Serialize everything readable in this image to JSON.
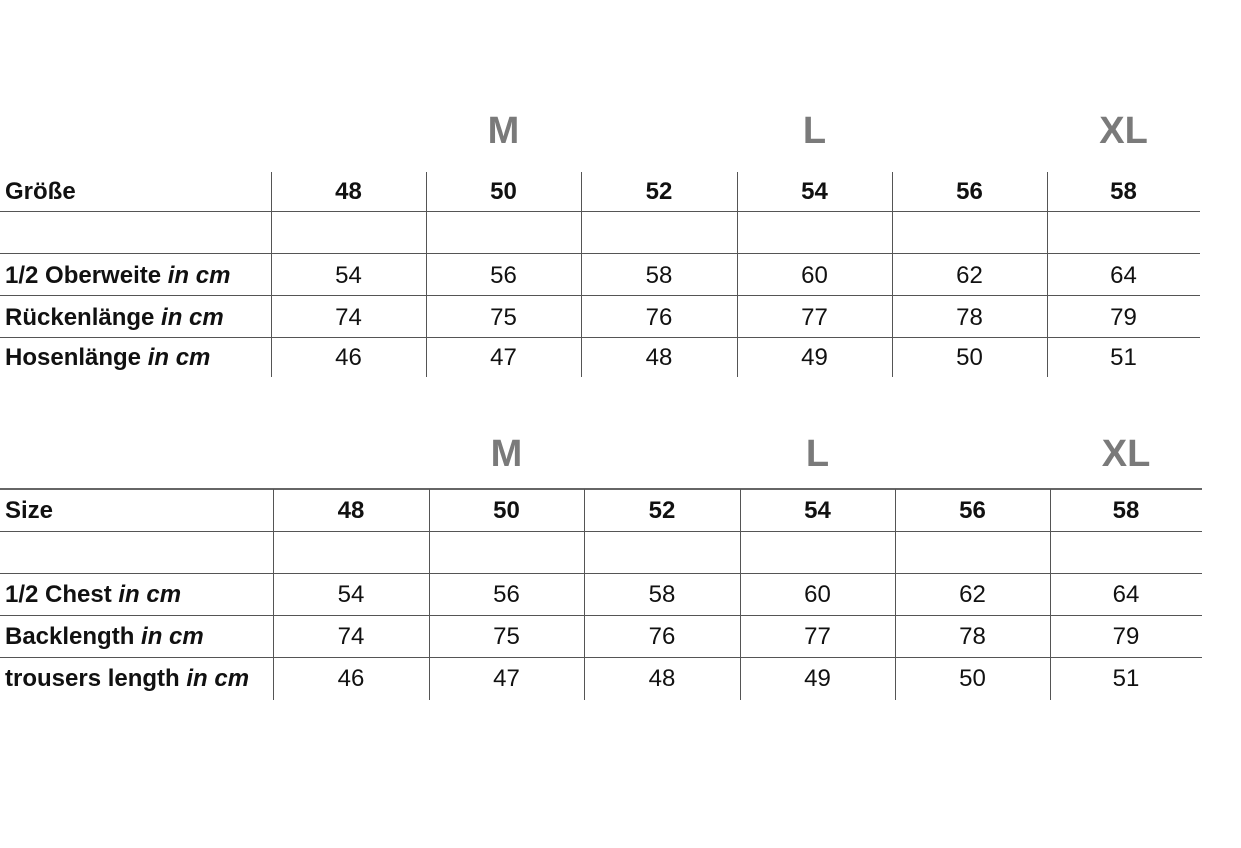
{
  "size_letters": [
    {
      "label": "M",
      "column": 2
    },
    {
      "label": "L",
      "column": 4
    },
    {
      "label": "XL",
      "column": 6
    }
  ],
  "tables": [
    {
      "language": "de",
      "header_label": "Größe",
      "sizes": [
        "48",
        "50",
        "52",
        "54",
        "56",
        "58"
      ],
      "rows": [
        {
          "label": "",
          "unit": "",
          "values": [
            "",
            "",
            "",
            "",
            "",
            ""
          ]
        },
        {
          "label": "1/2 Oberweite",
          "unit": "in cm",
          "values": [
            "54",
            "56",
            "58",
            "60",
            "62",
            "64"
          ]
        },
        {
          "label": "Rückenlänge",
          "unit": "in cm",
          "values": [
            "74",
            "75",
            "76",
            "77",
            "78",
            "79"
          ]
        },
        {
          "label": "Hosenlänge",
          "unit": "in cm",
          "values": [
            "46",
            "47",
            "48",
            "49",
            "50",
            "51"
          ]
        }
      ]
    },
    {
      "language": "en",
      "header_label": "Size",
      "sizes": [
        "48",
        "50",
        "52",
        "54",
        "56",
        "58"
      ],
      "rows": [
        {
          "label": "",
          "unit": "",
          "values": [
            "",
            "",
            "",
            "",
            "",
            ""
          ]
        },
        {
          "label": "1/2 Chest",
          "unit": "in cm",
          "values": [
            "54",
            "56",
            "58",
            "60",
            "62",
            "64"
          ]
        },
        {
          "label": "Backlength",
          "unit": "in cm",
          "values": [
            "74",
            "75",
            "76",
            "77",
            "78",
            "79"
          ]
        },
        {
          "label": "trousers length",
          "unit": "in cm",
          "values": [
            "46",
            "47",
            "48",
            "49",
            "50",
            "51"
          ]
        }
      ]
    }
  ]
}
